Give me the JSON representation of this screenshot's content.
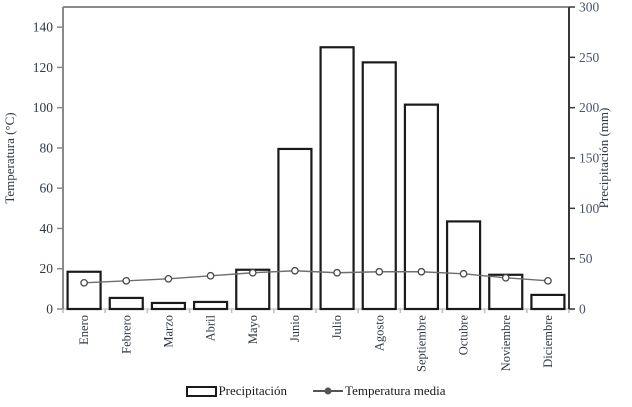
{
  "chart_data": {
    "type": "bar",
    "subtype": "bar+line combo climograph",
    "title": "",
    "categories": [
      "Enero",
      "Febrero",
      "Marzo",
      "Abril",
      "Mayo",
      "Junio",
      "Julio",
      "Agosto",
      "Septiembre",
      "Octubre",
      "Noviembre",
      "Diciembre"
    ],
    "series": [
      {
        "name": "Precipitación",
        "type": "bar",
        "axis": "right",
        "unit": "mm",
        "values": [
          37,
          11,
          6,
          7,
          39,
          159,
          260,
          245,
          203,
          87,
          34,
          14
        ]
      },
      {
        "name": "Temperatura media",
        "type": "line",
        "axis": "left",
        "unit": "°C",
        "values": [
          13,
          14,
          15,
          16.5,
          18,
          19,
          18,
          18.5,
          18.5,
          17.5,
          15.5,
          14
        ]
      }
    ],
    "left_axis": {
      "label": "Temperatura (°C)",
      "min": 0,
      "max": 150,
      "tick_step": 20,
      "ticks": [
        0,
        20,
        40,
        60,
        80,
        100,
        120,
        140
      ]
    },
    "right_axis": {
      "label": "Precipitación (mm)",
      "min": 0,
      "max": 300,
      "tick_step": 50,
      "ticks": [
        0,
        50,
        100,
        150,
        200,
        250,
        300
      ]
    },
    "legend": {
      "position": "bottom",
      "items": [
        {
          "label": "Precipitación",
          "swatch": "bar-outline"
        },
        {
          "label": "Temperatura media",
          "swatch": "line-with-marker"
        }
      ]
    },
    "grid": "off",
    "colors": {
      "background": "#ffffff",
      "bar_fill": "#ffffff",
      "bar_border": "#1a1a1a",
      "line": "#6e6e6e",
      "marker_fill": "#ffffff",
      "marker_stroke": "#474747",
      "legend_marker": "#555555",
      "axis_left": "#8a8a8a",
      "axis_right": "#383838",
      "axis_bottom": "#d9d9d9",
      "x_tick": "#bdbdbd",
      "tick_label_left": "#2f3945",
      "tick_label_right": "#4a5568",
      "month_label": "#2f3945"
    }
  }
}
